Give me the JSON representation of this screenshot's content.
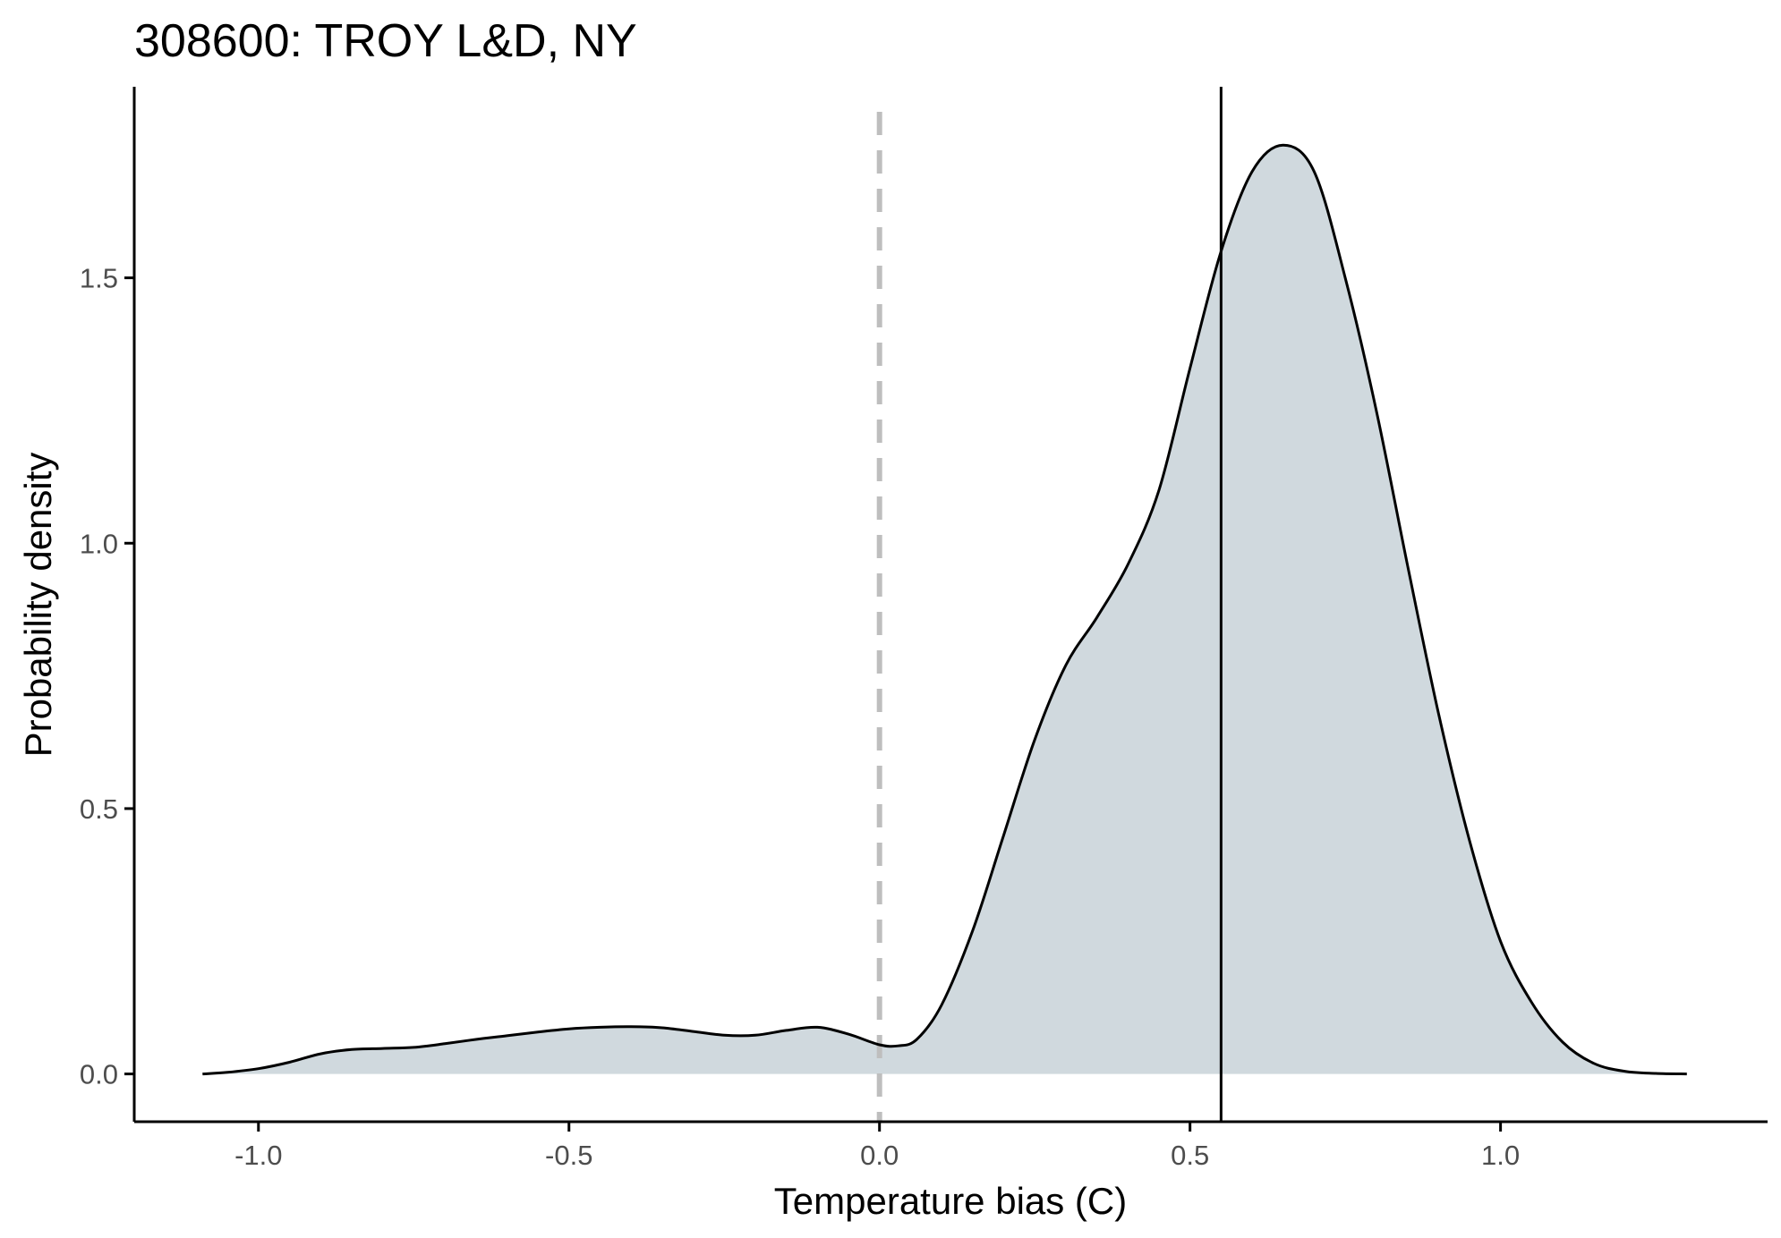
{
  "chart_data": {
    "type": "area",
    "title": "308600: TROY L&D, NY",
    "xlabel": "Temperature bias (C)",
    "ylabel": "Probability density",
    "xlim": [
      -1.2,
      1.43
    ],
    "ylim": [
      -0.09,
      1.86
    ],
    "x_ticks": [
      -1.0,
      -0.5,
      0.0,
      0.5,
      1.0
    ],
    "x_tick_labels": [
      "-1.0",
      "-0.5",
      "0.0",
      "0.5",
      "1.0"
    ],
    "y_ticks": [
      0.0,
      0.5,
      1.0,
      1.5
    ],
    "y_tick_labels": [
      "0.0",
      "0.5",
      "1.0",
      "1.5"
    ],
    "grid": false,
    "fill_color": "#d0d9de",
    "line_color": "#000000",
    "reference_lines": [
      {
        "name": "zero",
        "x": 0.0,
        "style": "dashed",
        "color": "#bebebe"
      },
      {
        "name": "mean",
        "x": 0.55,
        "style": "solid",
        "color": "#000000"
      }
    ],
    "density": {
      "x": [
        -1.09,
        -1.05,
        -1.0,
        -0.95,
        -0.9,
        -0.85,
        -0.8,
        -0.75,
        -0.7,
        -0.65,
        -0.6,
        -0.55,
        -0.5,
        -0.45,
        -0.4,
        -0.35,
        -0.3,
        -0.25,
        -0.2,
        -0.15,
        -0.1,
        -0.05,
        0.0,
        0.03,
        0.06,
        0.1,
        0.15,
        0.2,
        0.25,
        0.3,
        0.35,
        0.4,
        0.45,
        0.5,
        0.55,
        0.6,
        0.65,
        0.7,
        0.75,
        0.8,
        0.85,
        0.9,
        0.95,
        1.0,
        1.05,
        1.1,
        1.15,
        1.2,
        1.25,
        1.3
      ],
      "y": [
        0.0,
        0.003,
        0.01,
        0.022,
        0.038,
        0.046,
        0.048,
        0.05,
        0.057,
        0.065,
        0.072,
        0.079,
        0.085,
        0.088,
        0.089,
        0.087,
        0.08,
        0.073,
        0.073,
        0.082,
        0.088,
        0.075,
        0.055,
        0.053,
        0.065,
        0.13,
        0.27,
        0.45,
        0.63,
        0.77,
        0.86,
        0.96,
        1.1,
        1.33,
        1.55,
        1.7,
        1.75,
        1.7,
        1.5,
        1.25,
        0.96,
        0.68,
        0.44,
        0.25,
        0.135,
        0.06,
        0.02,
        0.005,
        0.001,
        0.0
      ]
    }
  }
}
